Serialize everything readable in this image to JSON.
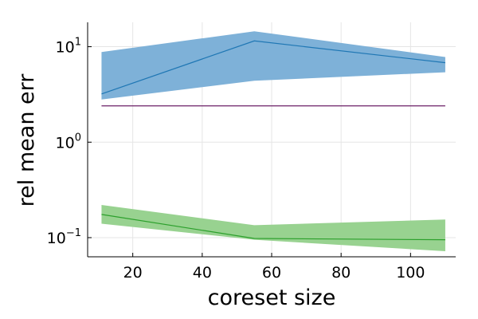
{
  "chart_data": {
    "type": "area",
    "xlabel": "coreset size",
    "ylabel": "rel mean err",
    "yscale": "log",
    "xlim": [
      7,
      113
    ],
    "ylim": [
      0.063,
      18
    ],
    "grid": true,
    "x_ticks": [
      20,
      40,
      60,
      80,
      100
    ],
    "x_tick_labels": [
      "20",
      "40",
      "60",
      "80",
      "100"
    ],
    "y_ticks": [
      0.1,
      1,
      10
    ],
    "y_tick_labels": [
      {
        "base": "10",
        "exp": "−1"
      },
      {
        "base": "10",
        "exp": "0"
      },
      {
        "base": "10",
        "exp": "1"
      }
    ],
    "series": [
      {
        "color": "#1f77b4",
        "band_color": "#7eb1d8",
        "x": [
          11,
          55,
          110
        ],
        "values": [
          3.2,
          11.5,
          6.8
        ],
        "lower": [
          2.8,
          4.4,
          5.4
        ],
        "upper": [
          8.8,
          14.5,
          7.8
        ]
      },
      {
        "color": "#2ca02c",
        "band_color": "#98d290",
        "x": [
          11,
          55,
          110
        ],
        "values": [
          0.175,
          0.098,
          0.095
        ],
        "lower": [
          0.14,
          0.095,
          0.072
        ],
        "upper": [
          0.22,
          0.135,
          0.155
        ]
      },
      {
        "color": "#6b1f66",
        "band_color": "",
        "x": [
          11,
          110
        ],
        "values": [
          2.4,
          2.4
        ]
      }
    ]
  }
}
